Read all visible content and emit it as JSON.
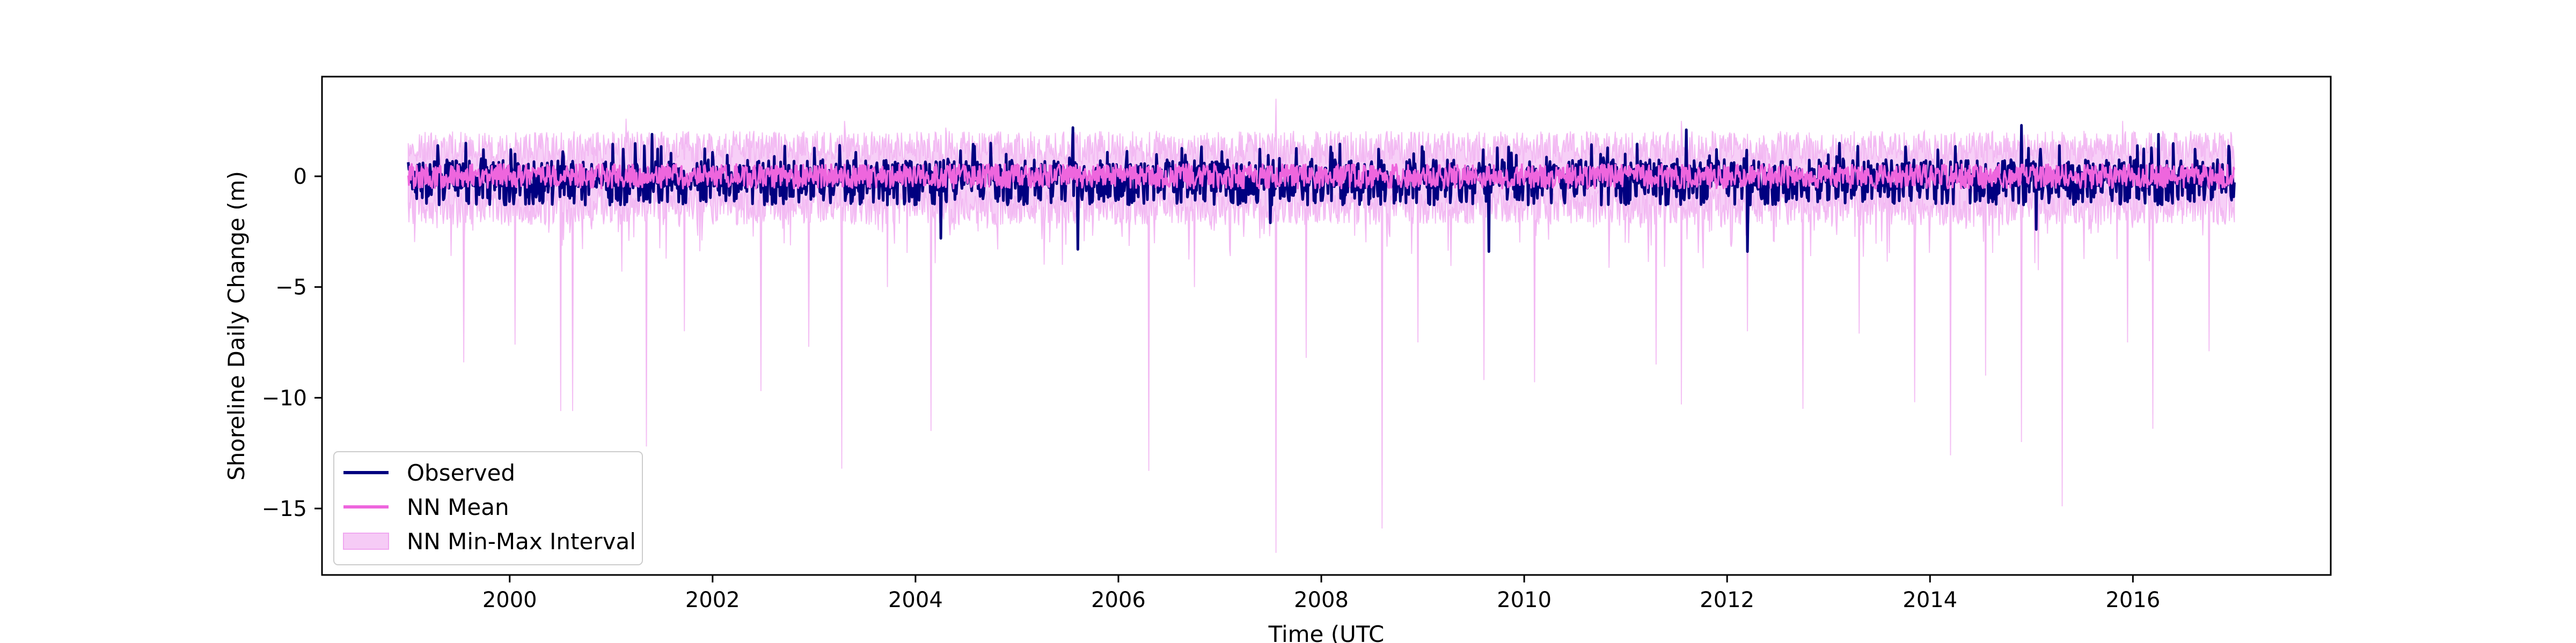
{
  "chart_data": {
    "type": "line",
    "title": "",
    "xlabel": "Time (UTC",
    "ylabel": "Shoreline Daily Change (m)",
    "xlim": [
      1998.15,
      2017.95
    ],
    "ylim": [
      -18.0,
      4.5
    ],
    "x_ticks": [
      2000,
      2002,
      2004,
      2006,
      2008,
      2010,
      2012,
      2014,
      2016
    ],
    "x_tick_labels": [
      "2000",
      "2002",
      "2004",
      "2006",
      "2008",
      "2010",
      "2012",
      "2014",
      "2016"
    ],
    "y_ticks": [
      0,
      -5,
      -10,
      -15
    ],
    "y_tick_labels": [
      "0",
      "−5",
      "−10",
      "−15"
    ],
    "grid": false,
    "legend_position": "lower-left",
    "x_range": [
      1999.0,
      2017.0
    ],
    "series": [
      {
        "name": "Observed",
        "kind": "line",
        "color": "#000080",
        "typical_range": [
          -1.2,
          1.4
        ],
        "extremes_min": [
          [
            2005.6,
            -3.3
          ],
          [
            2009.65,
            -3.4
          ],
          [
            2012.2,
            -3.4
          ],
          [
            2004.25,
            -2.8
          ],
          [
            2007.5,
            -2.1
          ],
          [
            2015.05,
            -2.4
          ]
        ],
        "extremes_max": [
          [
            2005.55,
            2.2
          ],
          [
            2011.6,
            2.1
          ],
          [
            2014.9,
            2.3
          ],
          [
            2001.4,
            1.9
          ],
          [
            2016.25,
            1.9
          ]
        ]
      },
      {
        "name": "NN Mean",
        "kind": "line",
        "color": "#ee66dd",
        "typical_range": [
          -0.9,
          0.7
        ]
      },
      {
        "name": "NN Min-Max Interval",
        "kind": "band",
        "color": "#f0a8f0",
        "opacity": 0.55,
        "upper_typical": [
          0.5,
          2.3
        ],
        "lower_typical": [
          -0.6,
          -2.5
        ],
        "upper_spikes": [
          [
            2007.55,
            3.5
          ],
          [
            2001.15,
            2.6
          ],
          [
            2003.3,
            2.5
          ],
          [
            2015.9,
            2.5
          ],
          [
            2004.3,
            2.2
          ],
          [
            2011.55,
            2.5
          ]
        ],
        "lower_spikes": [
          [
            1999.55,
            -8.4
          ],
          [
            2000.05,
            -7.6
          ],
          [
            2000.5,
            -10.6
          ],
          [
            2000.62,
            -10.6
          ],
          [
            2001.35,
            -12.2
          ],
          [
            2001.72,
            -7.0
          ],
          [
            2002.48,
            -9.7
          ],
          [
            2002.95,
            -7.7
          ],
          [
            2003.27,
            -13.2
          ],
          [
            2003.72,
            -5.0
          ],
          [
            2004.15,
            -11.5
          ],
          [
            2005.45,
            -4.0
          ],
          [
            2006.3,
            -13.3
          ],
          [
            2006.75,
            -5.0
          ],
          [
            2007.55,
            -17.0
          ],
          [
            2007.85,
            -8.2
          ],
          [
            2008.6,
            -15.9
          ],
          [
            2008.95,
            -7.5
          ],
          [
            2009.6,
            -9.2
          ],
          [
            2010.1,
            -9.3
          ],
          [
            2011.3,
            -8.5
          ],
          [
            2011.55,
            -10.3
          ],
          [
            2012.2,
            -7.0
          ],
          [
            2012.75,
            -10.5
          ],
          [
            2013.3,
            -7.1
          ],
          [
            2013.85,
            -10.2
          ],
          [
            2014.2,
            -12.6
          ],
          [
            2014.55,
            -9.0
          ],
          [
            2014.9,
            -12.0
          ],
          [
            2015.3,
            -14.9
          ],
          [
            2015.95,
            -7.5
          ],
          [
            2016.2,
            -11.4
          ],
          [
            2016.75,
            -7.9
          ]
        ]
      }
    ]
  },
  "legend": {
    "items": [
      {
        "label": "Observed",
        "color": "#000080"
      },
      {
        "label": "NN Mean",
        "color": "#ee66dd"
      },
      {
        "label": "NN Min-Max Interval",
        "color": "#f0a8f0"
      }
    ]
  }
}
